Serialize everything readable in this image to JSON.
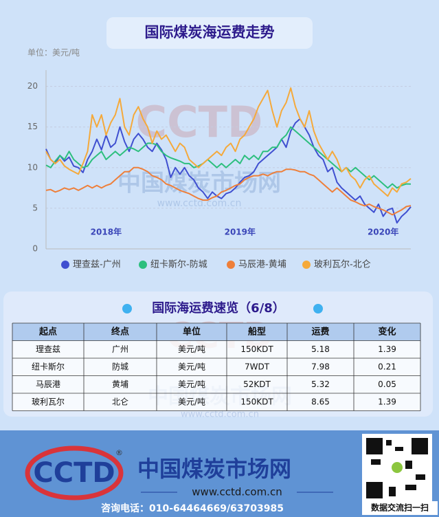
{
  "chart_data": {
    "type": "line",
    "title": "国际煤炭海运费走势",
    "y_label": "单位：美元/吨",
    "categories": [
      null,
      null,
      null,
      null,
      null,
      null,
      null,
      null,
      null,
      null,
      null,
      null,
      null,
      "2018年",
      null,
      null,
      null,
      null,
      null,
      null,
      null,
      null,
      null,
      null,
      null,
      null,
      null,
      null,
      null,
      null,
      null,
      null,
      null,
      null,
      null,
      null,
      null,
      null,
      null,
      null,
      null,
      null,
      "2019年",
      null,
      null,
      null,
      null,
      null,
      null,
      null,
      null,
      null,
      null,
      null,
      null,
      null,
      null,
      null,
      null,
      null,
      null,
      null,
      null,
      null,
      null,
      null,
      null,
      null,
      null,
      null,
      null,
      null,
      null,
      "2020年",
      null,
      null,
      null,
      null,
      null,
      null
    ],
    "series": [
      {
        "name": "理查兹-广州",
        "color": "#3f4fd0",
        "values": [
          12.3,
          11.0,
          10.5,
          11.5,
          10.8,
          11.3,
          10.2,
          10.0,
          9.4,
          11.0,
          12.0,
          13.5,
          12.2,
          14.0,
          12.5,
          13.0,
          15.0,
          13.2,
          12.0,
          13.5,
          14.2,
          13.5,
          12.5,
          12.0,
          13.0,
          12.2,
          11.0,
          8.8,
          10.0,
          9.2,
          10.0,
          9.0,
          8.5,
          7.5,
          7.0,
          6.2,
          7.0,
          6.5,
          6.2,
          6.8,
          7.0,
          7.5,
          8.2,
          8.8,
          9.0,
          9.5,
          10.5,
          11.0,
          11.5,
          12.0,
          12.5,
          13.5,
          12.5,
          14.5,
          15.5,
          16.0,
          15.0,
          14.0,
          12.5,
          11.5,
          11.0,
          9.5,
          10.0,
          8.2,
          7.5,
          7.0,
          6.5,
          6.0,
          6.5,
          5.5,
          5.0,
          4.5,
          5.5,
          4.0,
          4.8,
          5.0,
          3.2,
          4.0,
          4.5,
          5.18
        ]
      },
      {
        "name": "纽卡斯尔-防城",
        "color": "#2dbf7e",
        "values": [
          10.3,
          10.0,
          10.8,
          11.5,
          11.0,
          12.0,
          11.0,
          10.5,
          10.0,
          10.2,
          11.0,
          11.5,
          12.0,
          11.0,
          11.5,
          12.0,
          11.5,
          12.0,
          12.5,
          12.3,
          12.0,
          12.5,
          13.0,
          13.0,
          12.8,
          12.0,
          11.5,
          11.2,
          11.0,
          10.8,
          10.5,
          10.5,
          10.0,
          10.2,
          10.5,
          11.0,
          10.5,
          10.0,
          10.5,
          10.0,
          10.5,
          11.0,
          10.5,
          11.5,
          11.0,
          11.5,
          11.0,
          12.0,
          12.0,
          12.5,
          12.5,
          13.5,
          14.0,
          15.0,
          14.5,
          14.0,
          13.5,
          13.0,
          12.5,
          12.0,
          11.5,
          11.0,
          10.5,
          10.0,
          9.5,
          10.0,
          9.5,
          10.0,
          9.5,
          9.0,
          8.5,
          9.0,
          8.5,
          8.0,
          7.5,
          8.0,
          7.5,
          7.8,
          8.0,
          7.98
        ]
      },
      {
        "name": "马辰港-黄埔",
        "color": "#ee7f3a",
        "values": [
          7.2,
          7.3,
          7.0,
          7.2,
          7.5,
          7.3,
          7.5,
          7.2,
          7.5,
          7.8,
          7.5,
          7.8,
          7.5,
          7.8,
          8.0,
          8.5,
          9.0,
          9.5,
          9.5,
          10.0,
          10.0,
          9.8,
          9.5,
          9.0,
          8.8,
          8.5,
          8.0,
          7.8,
          7.5,
          7.2,
          7.0,
          6.8,
          6.5,
          6.2,
          6.0,
          6.0,
          6.3,
          6.5,
          7.0,
          7.2,
          7.5,
          7.8,
          8.0,
          8.5,
          8.8,
          9.0,
          9.0,
          9.2,
          9.0,
          9.3,
          9.5,
          9.5,
          9.8,
          9.8,
          9.7,
          9.5,
          9.5,
          9.2,
          9.0,
          8.5,
          8.0,
          7.5,
          7.0,
          7.5,
          7.0,
          6.5,
          6.0,
          5.8,
          5.5,
          5.3,
          5.5,
          5.2,
          5.0,
          4.8,
          4.5,
          4.2,
          4.5,
          4.8,
          5.2,
          5.32
        ]
      },
      {
        "name": "玻利瓦尔-北仑",
        "color": "#f5a93a",
        "values": [
          12.0,
          11.0,
          10.5,
          11.0,
          10.2,
          9.8,
          9.5,
          9.2,
          10.5,
          12.0,
          16.5,
          15.0,
          16.5,
          14.0,
          15.5,
          16.5,
          18.5,
          15.0,
          14.0,
          16.5,
          17.5,
          16.0,
          15.0,
          13.0,
          14.5,
          13.5,
          14.0,
          13.0,
          12.0,
          13.0,
          12.5,
          11.0,
          10.5,
          10.0,
          10.5,
          11.0,
          11.5,
          12.0,
          11.5,
          12.5,
          13.0,
          12.0,
          13.5,
          14.0,
          15.0,
          16.0,
          17.5,
          18.5,
          19.5,
          17.0,
          15.0,
          17.0,
          18.0,
          19.8,
          17.5,
          16.0,
          15.0,
          17.0,
          14.5,
          13.0,
          12.0,
          11.0,
          12.0,
          11.0,
          9.5,
          10.0,
          9.0,
          8.5,
          7.5,
          8.5,
          9.0,
          8.0,
          7.5,
          7.0,
          6.5,
          7.5,
          7.0,
          8.0,
          8.2,
          8.65
        ]
      }
    ],
    "ylim": [
      0,
      22
    ],
    "yticks": [
      0,
      5,
      10,
      15,
      20
    ],
    "grid": true
  },
  "watermark": {
    "logo": "CCTD",
    "name": "中国煤炭市场网",
    "url": "www.cctd.com.cn"
  },
  "table": {
    "title": "国际海运费速览（6/8）",
    "header": [
      "起点",
      "终点",
      "单位",
      "船型",
      "运费",
      "变化"
    ],
    "rows": [
      [
        "理查兹",
        "广州",
        "美元/吨",
        "150KDT",
        "5.18",
        "1.39"
      ],
      [
        "纽卡斯尔",
        "防城",
        "美元/吨",
        "7WDT",
        "7.98",
        "0.21"
      ],
      [
        "马辰港",
        "黄埔",
        "美元/吨",
        "52KDT",
        "5.32",
        "0.05"
      ],
      [
        "玻利瓦尔",
        "北仑",
        "美元/吨",
        "150KDT",
        "8.65",
        "1.39"
      ]
    ]
  },
  "footer": {
    "logo": "CCTD",
    "registered": "®",
    "name": "中国煤炭市场网",
    "url": "www.cctd.com.cn",
    "phone": "咨询电话：010-64464669/63703985",
    "qr_caption": "数据交流扫一扫"
  }
}
